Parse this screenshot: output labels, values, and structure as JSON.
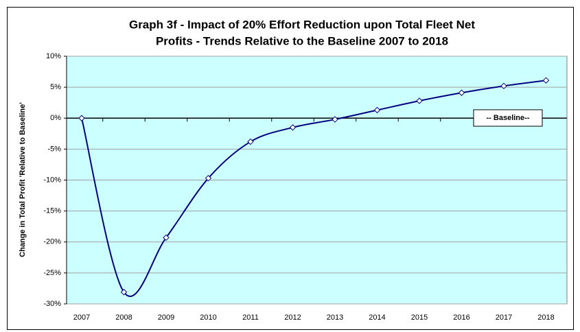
{
  "chart_data": {
    "type": "line",
    "title": [
      "Graph 3f - Impact of 20% Effort Reduction upon Total Fleet Net",
      "Profits - Trends Relative to the Baseline 2007 to 2018"
    ],
    "ylabel": "Change in Total Profit 'Relative to Baseline'",
    "annotation": "-- Baseline--",
    "categories": [
      "2007",
      "2008",
      "2009",
      "2010",
      "2011",
      "2012",
      "2013",
      "2014",
      "2015",
      "2016",
      "2017",
      "2018"
    ],
    "values": [
      0,
      -28.1,
      -19.3,
      -9.7,
      -3.8,
      -1.5,
      -0.2,
      1.3,
      2.8,
      4.1,
      5.2,
      6.1
    ],
    "color": "#000080",
    "ylim": [
      -30,
      10
    ],
    "yticks": [
      {
        "value": -30,
        "label": "-30%"
      },
      {
        "value": -25,
        "label": "-25%"
      },
      {
        "value": -20,
        "label": "-20%"
      },
      {
        "value": -15,
        "label": "-15%"
      },
      {
        "value": -10,
        "label": "-10%"
      },
      {
        "value": -5,
        "label": "-5%"
      },
      {
        "value": 0,
        "label": "0%"
      },
      {
        "value": 5,
        "label": "5%"
      },
      {
        "value": 10,
        "label": "10%"
      }
    ],
    "grid": true,
    "smooth": true,
    "plot_background": "#ccffff"
  }
}
